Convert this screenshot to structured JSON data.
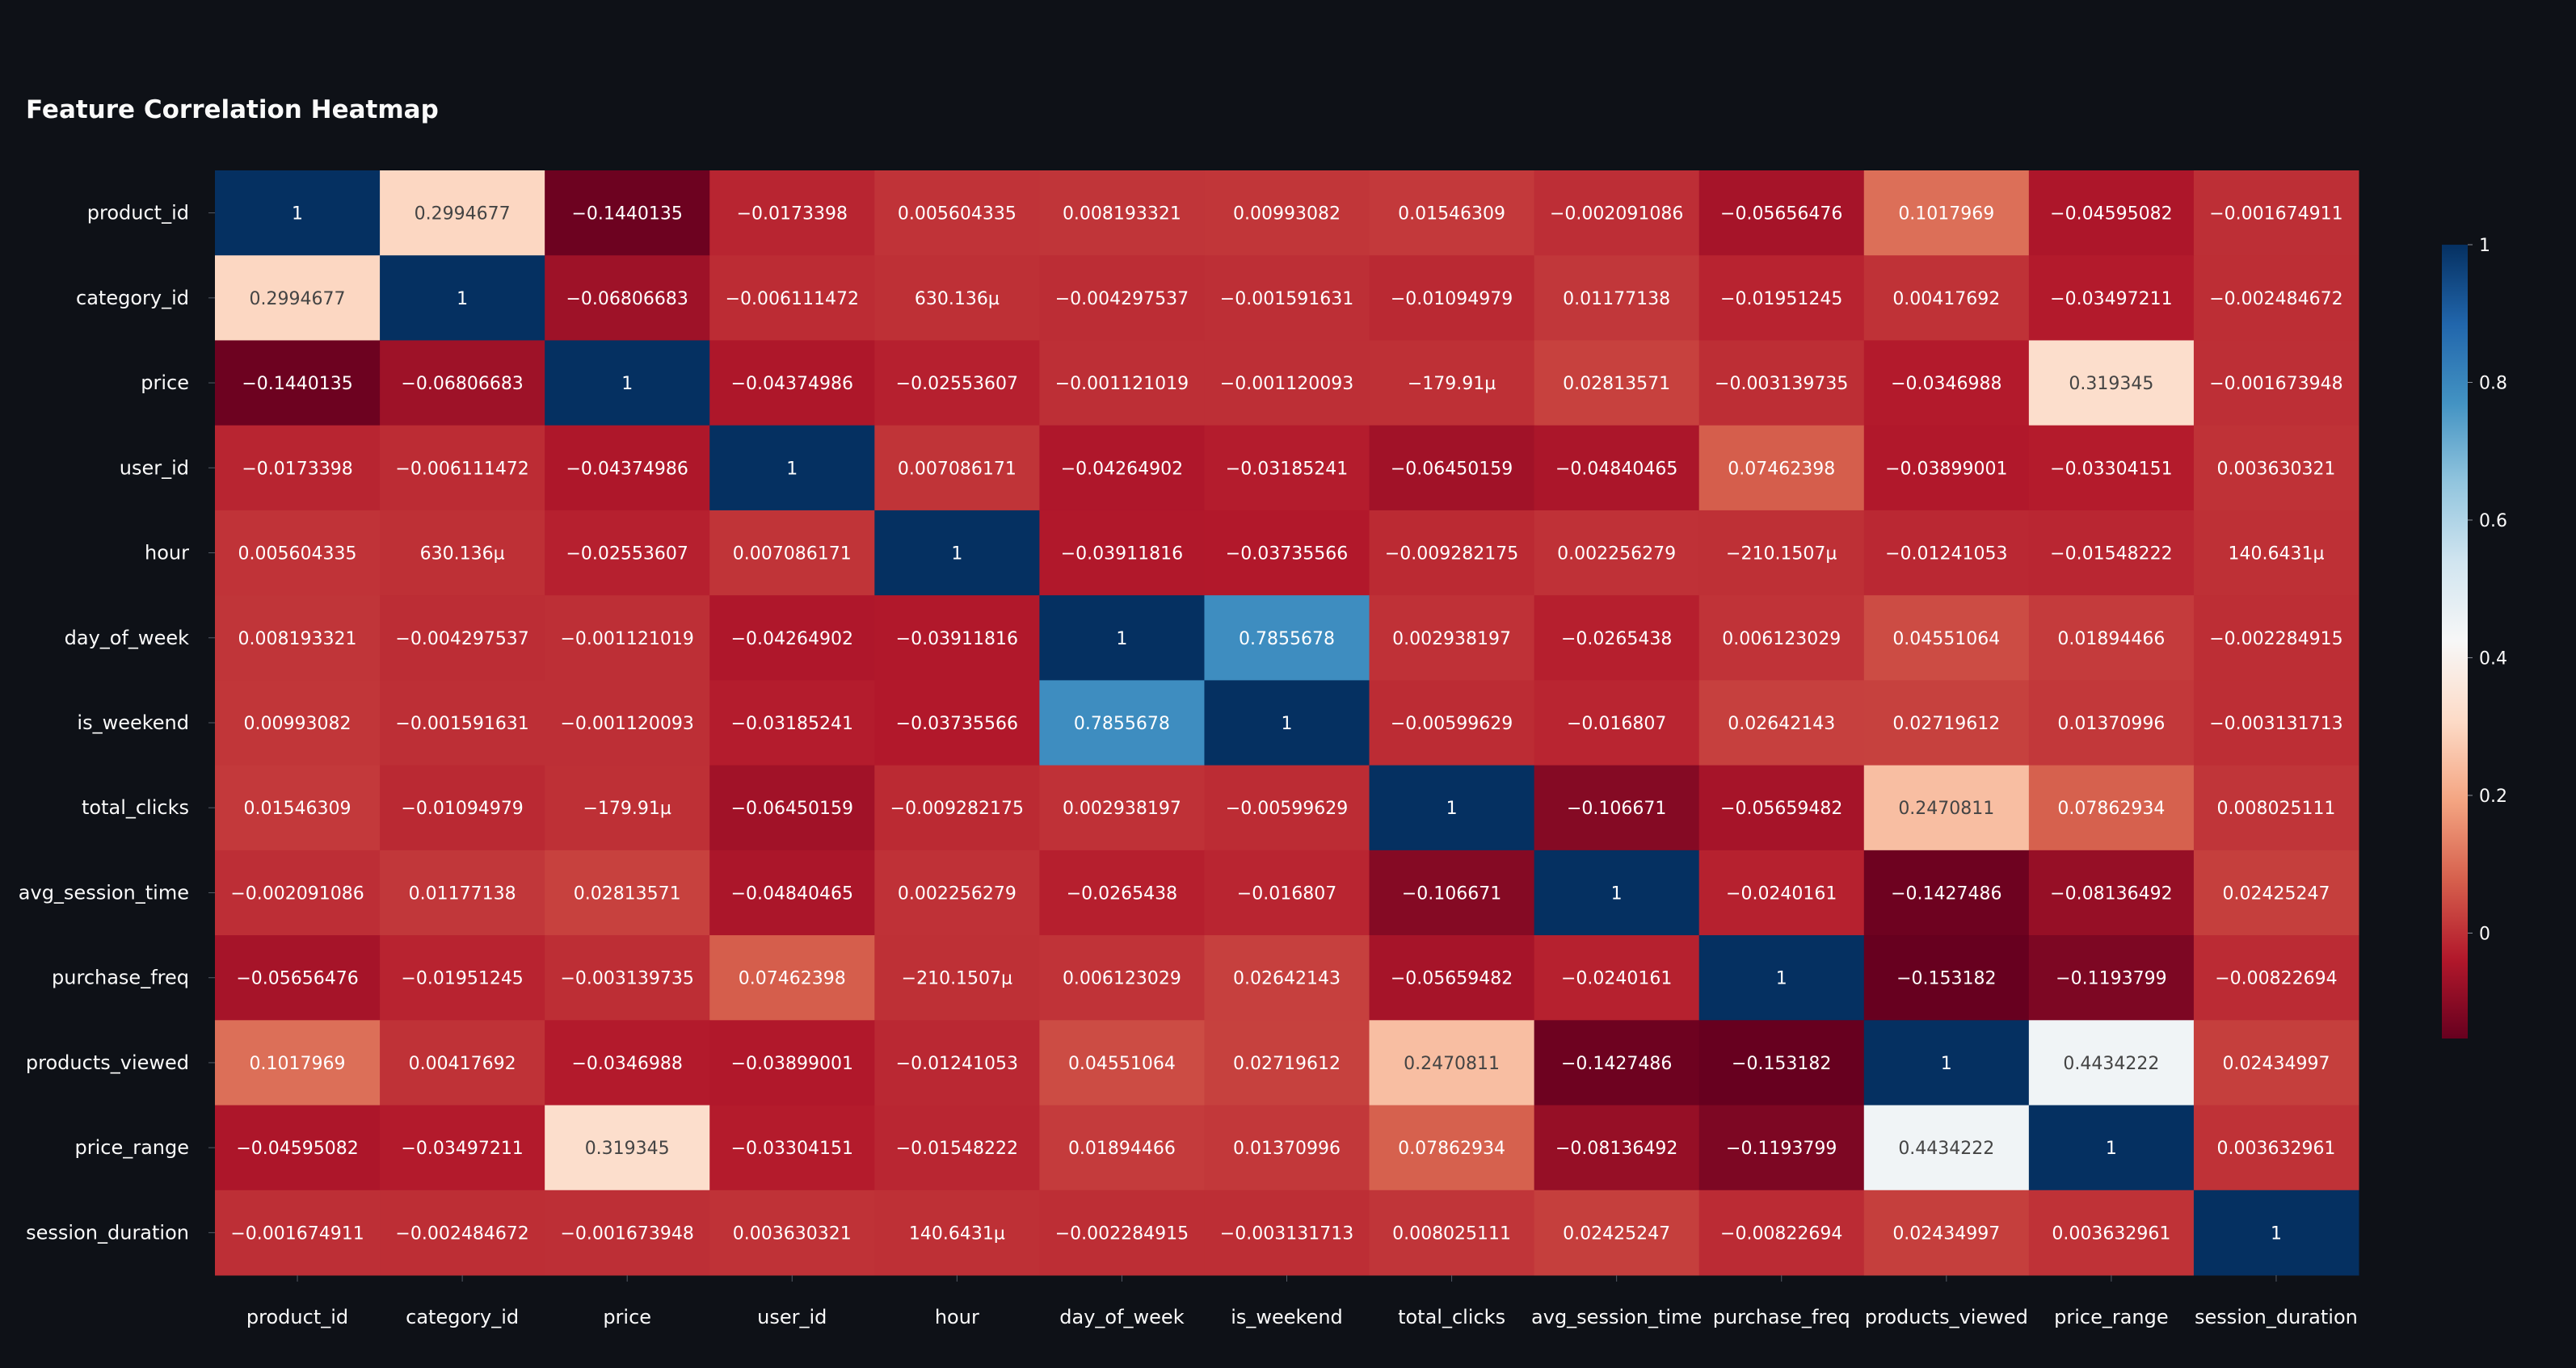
{
  "chart_data": {
    "type": "heatmap",
    "title": "Feature Correlation Heatmap",
    "xlabel": "",
    "ylabel": "",
    "labels": [
      "product_id",
      "category_id",
      "price",
      "user_id",
      "hour",
      "day_of_week",
      "is_weekend",
      "total_clicks",
      "avg_session_time",
      "purchase_freq",
      "products_viewed",
      "price_range",
      "session_duration"
    ],
    "values": [
      [
        1,
        0.2994677,
        -0.1440135,
        -0.0173398,
        0.005604335,
        0.008193321,
        0.00993082,
        0.01546309,
        -0.002091086,
        -0.05656476,
        0.1017969,
        -0.04595082,
        -0.001674911
      ],
      [
        0.2994677,
        1,
        -0.06806683,
        -0.006111472,
        0.000630136,
        -0.004297537,
        -0.001591631,
        -0.01094979,
        0.01177138,
        -0.01951245,
        0.00417692,
        -0.03497211,
        -0.002484672
      ],
      [
        -0.1440135,
        -0.06806683,
        1,
        -0.04374986,
        -0.02553607,
        -0.001121019,
        -0.001120093,
        -0.00017991,
        0.02813571,
        -0.003139735,
        -0.0346988,
        0.319345,
        -0.001673948
      ],
      [
        -0.0173398,
        -0.006111472,
        -0.04374986,
        1,
        0.007086171,
        -0.04264902,
        -0.03185241,
        -0.06450159,
        -0.04840465,
        0.07462398,
        -0.03899001,
        -0.03304151,
        0.003630321
      ],
      [
        0.005604335,
        0.000630136,
        -0.02553607,
        0.007086171,
        1,
        -0.03911816,
        -0.03735566,
        -0.009282175,
        0.002256279,
        -0.0002101507,
        -0.01241053,
        -0.01548222,
        0.0001406431
      ],
      [
        0.008193321,
        -0.004297537,
        -0.001121019,
        -0.04264902,
        -0.03911816,
        1,
        0.7855678,
        0.002938197,
        -0.0265438,
        0.006123029,
        0.04551064,
        0.01894466,
        -0.002284915
      ],
      [
        0.00993082,
        -0.001591631,
        -0.001120093,
        -0.03185241,
        -0.03735566,
        0.7855678,
        1,
        -0.00599629,
        -0.016807,
        0.02642143,
        0.02719612,
        0.01370996,
        -0.003131713
      ],
      [
        0.01546309,
        -0.01094979,
        -0.00017991,
        -0.06450159,
        -0.009282175,
        0.002938197,
        -0.00599629,
        1,
        -0.106671,
        -0.05659482,
        0.2470811,
        0.07862934,
        0.008025111
      ],
      [
        -0.002091086,
        0.01177138,
        0.02813571,
        -0.04840465,
        0.002256279,
        -0.0265438,
        -0.016807,
        -0.106671,
        1,
        -0.0240161,
        -0.1427486,
        -0.08136492,
        0.02425247
      ],
      [
        -0.05656476,
        -0.01951245,
        -0.003139735,
        0.07462398,
        -0.0002101507,
        0.006123029,
        0.02642143,
        -0.05659482,
        -0.0240161,
        1,
        -0.153182,
        -0.1193799,
        -0.00822694
      ],
      [
        0.1017969,
        0.00417692,
        -0.0346988,
        -0.03899001,
        -0.01241053,
        0.04551064,
        0.02719612,
        0.2470811,
        -0.1427486,
        -0.153182,
        1,
        0.4434222,
        0.02434997
      ],
      [
        -0.04595082,
        -0.03497211,
        0.319345,
        -0.03304151,
        -0.01548222,
        0.01894466,
        0.01370996,
        0.07862934,
        -0.08136492,
        -0.1193799,
        0.4434222,
        1,
        0.003632961
      ],
      [
        -0.001674911,
        -0.002484672,
        -0.001673948,
        0.003630321,
        0.0001406431,
        -0.002284915,
        -0.003131713,
        0.008025111,
        0.02425247,
        -0.00822694,
        0.02434997,
        0.003632961,
        1
      ]
    ],
    "text": [
      [
        "1",
        "0.2994677",
        "−0.1440135",
        "−0.0173398",
        "0.005604335",
        "0.008193321",
        "0.00993082",
        "0.01546309",
        "−0.002091086",
        "−0.05656476",
        "0.1017969",
        "−0.04595082",
        "−0.001674911"
      ],
      [
        "0.2994677",
        "1",
        "−0.06806683",
        "−0.006111472",
        "630.136µ",
        "−0.004297537",
        "−0.001591631",
        "−0.01094979",
        "0.01177138",
        "−0.01951245",
        "0.00417692",
        "−0.03497211",
        "−0.002484672"
      ],
      [
        "−0.1440135",
        "−0.06806683",
        "1",
        "−0.04374986",
        "−0.02553607",
        "−0.001121019",
        "−0.001120093",
        "−179.91µ",
        "0.02813571",
        "−0.003139735",
        "−0.0346988",
        "0.319345",
        "−0.001673948"
      ],
      [
        "−0.0173398",
        "−0.006111472",
        "−0.04374986",
        "1",
        "0.007086171",
        "−0.04264902",
        "−0.03185241",
        "−0.06450159",
        "−0.04840465",
        "0.07462398",
        "−0.03899001",
        "−0.03304151",
        "0.003630321"
      ],
      [
        "0.005604335",
        "630.136µ",
        "−0.02553607",
        "0.007086171",
        "1",
        "−0.03911816",
        "−0.03735566",
        "−0.009282175",
        "0.002256279",
        "−210.1507µ",
        "−0.01241053",
        "−0.01548222",
        "140.6431µ"
      ],
      [
        "0.008193321",
        "−0.004297537",
        "−0.001121019",
        "−0.04264902",
        "−0.03911816",
        "1",
        "0.7855678",
        "0.002938197",
        "−0.0265438",
        "0.006123029",
        "0.04551064",
        "0.01894466",
        "−0.002284915"
      ],
      [
        "0.00993082",
        "−0.001591631",
        "−0.001120093",
        "−0.03185241",
        "−0.03735566",
        "0.7855678",
        "1",
        "−0.00599629",
        "−0.016807",
        "0.02642143",
        "0.02719612",
        "0.01370996",
        "−0.003131713"
      ],
      [
        "0.01546309",
        "−0.01094979",
        "−179.91µ",
        "−0.06450159",
        "−0.009282175",
        "0.002938197",
        "−0.00599629",
        "1",
        "−0.106671",
        "−0.05659482",
        "0.2470811",
        "0.07862934",
        "0.008025111"
      ],
      [
        "−0.002091086",
        "0.01177138",
        "0.02813571",
        "−0.04840465",
        "0.002256279",
        "−0.0265438",
        "−0.016807",
        "−0.106671",
        "1",
        "−0.0240161",
        "−0.1427486",
        "−0.08136492",
        "0.02425247"
      ],
      [
        "−0.05656476",
        "−0.01951245",
        "−0.003139735",
        "0.07462398",
        "−210.1507µ",
        "0.006123029",
        "0.02642143",
        "−0.05659482",
        "−0.0240161",
        "1",
        "−0.153182",
        "−0.1193799",
        "−0.00822694"
      ],
      [
        "0.1017969",
        "0.00417692",
        "−0.0346988",
        "−0.03899001",
        "−0.01241053",
        "0.04551064",
        "0.02719612",
        "0.2470811",
        "−0.1427486",
        "−0.153182",
        "1",
        "0.4434222",
        "0.02434997"
      ],
      [
        "−0.04595082",
        "−0.03497211",
        "0.319345",
        "−0.03304151",
        "−0.01548222",
        "0.01894466",
        "0.01370996",
        "0.07862934",
        "−0.08136492",
        "−0.1193799",
        "0.4434222",
        "1",
        "0.003632961"
      ],
      [
        "−0.001674911",
        "−0.002484672",
        "−0.001673948",
        "0.003630321",
        "140.6431µ",
        "−0.002284915",
        "−0.003131713",
        "0.008025111",
        "0.02425247",
        "−0.00822694",
        "0.02434997",
        "0.003632961",
        "1"
      ]
    ],
    "colorscale": {
      "name": "RdBu",
      "stops": [
        [
          0.0,
          "#67001f"
        ],
        [
          0.1,
          "#b2182b"
        ],
        [
          0.2,
          "#d6604d"
        ],
        [
          0.3,
          "#f4a582"
        ],
        [
          0.4,
          "#fddbc7"
        ],
        [
          0.5,
          "#f7f7f7"
        ],
        [
          0.6,
          "#d1e5f0"
        ],
        [
          0.7,
          "#92c5de"
        ],
        [
          0.8,
          "#4393c3"
        ],
        [
          0.9,
          "#2166ac"
        ],
        [
          1.0,
          "#053061"
        ]
      ]
    },
    "zmin": -0.153182,
    "zmax": 1,
    "colorbar_ticks": [
      0,
      0.2,
      0.4,
      0.6,
      0.8,
      1
    ],
    "colorbar_tick_labels": [
      "0",
      "0.2",
      "0.4",
      "0.6",
      "0.8",
      "1"
    ],
    "colorbar_placement": "right"
  }
}
